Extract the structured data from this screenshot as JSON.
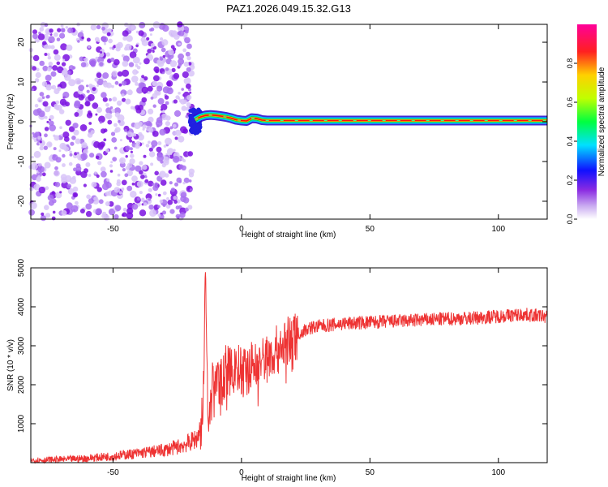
{
  "figure_title": "PAZ1.2026.049.15.32.G13",
  "colors": {
    "snr_line": "#ee3333",
    "dots": "#8a2be2",
    "text": "#000000"
  },
  "chart_data": [
    {
      "type": "heatmap",
      "title": "PAZ1.2026.049.15.32.G13",
      "xlabel": "Height of straight line (km)",
      "ylabel": "Frequency (Hz)",
      "xlim": [
        -82,
        119
      ],
      "ylim": [
        -24.5,
        24.5
      ],
      "xticks": [
        -50,
        0,
        50,
        100
      ],
      "yticks": [
        -20,
        -10,
        0,
        10,
        20
      ],
      "noise_region_x": [
        -82,
        -19
      ],
      "ridge": {
        "x": [
          -18,
          -16,
          -14,
          -12,
          -10,
          -8,
          -6,
          -4,
          -2,
          0,
          2,
          4,
          6,
          8,
          10,
          14,
          20,
          40,
          60,
          80,
          100,
          119
        ],
        "freq": [
          0.5,
          1.2,
          1.6,
          1.7,
          1.6,
          1.4,
          1.2,
          0.9,
          0.5,
          0.3,
          0.2,
          0.9,
          0.8,
          0.4,
          0.3,
          0.3,
          0.3,
          0.3,
          0.3,
          0.3,
          0.3,
          0.3
        ]
      },
      "colorbar": {
        "label": "Normalized spectral amplitude",
        "ticks": [
          0.0,
          0.2,
          0.4,
          0.6,
          0.8
        ],
        "range": [
          0.0,
          1.0
        ]
      }
    },
    {
      "type": "line",
      "xlabel": "Height of straight line (km)",
      "ylabel": "SNR (10 * v/v)",
      "xlim": [
        -82,
        119
      ],
      "ylim": [
        0,
        5000
      ],
      "xticks": [
        -50,
        0,
        50,
        100
      ],
      "yticks": [
        1000,
        2000,
        3000,
        4000,
        5000
      ],
      "series": [
        {
          "name": "SNR",
          "x": [
            -82,
            -70,
            -60,
            -50,
            -40,
            -30,
            -25,
            -20,
            -17,
            -15,
            -14,
            -13.5,
            -13,
            -12,
            -10,
            -8,
            -6,
            -4,
            -2,
            0,
            2,
            4,
            6,
            8,
            10,
            14,
            18,
            22,
            26,
            30,
            40,
            50,
            60,
            70,
            80,
            90,
            100,
            110,
            119
          ],
          "y": [
            60,
            80,
            110,
            170,
            240,
            320,
            400,
            520,
            650,
            1200,
            4950,
            3200,
            700,
            1900,
            2200,
            2000,
            2400,
            2300,
            2500,
            2300,
            2350,
            2500,
            2500,
            2600,
            2700,
            2900,
            3100,
            3300,
            3450,
            3500,
            3570,
            3600,
            3630,
            3660,
            3690,
            3710,
            3760,
            3800,
            3750
          ]
        }
      ]
    }
  ]
}
